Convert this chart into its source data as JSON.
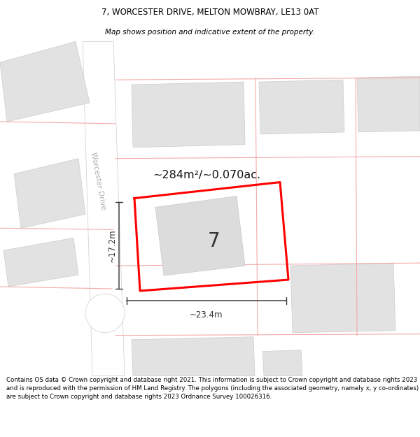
{
  "title": "7, WORCESTER DRIVE, MELTON MOWBRAY, LE13 0AT",
  "subtitle": "Map shows position and indicative extent of the property.",
  "footer": "Contains OS data © Crown copyright and database right 2021. This information is subject to Crown copyright and database rights 2023 and is reproduced with the permission of HM Land Registry. The polygons (including the associated geometry, namely x, y co-ordinates) are subject to Crown copyright and database rights 2023 Ordnance Survey 100026316.",
  "area_text": "~284m²/~0.070ac.",
  "label_7": "7",
  "dim_width": "~23.4m",
  "dim_height": "~17.2m",
  "street_name": "Worcester Drive",
  "title_fontsize": 8.5,
  "subtitle_fontsize": 7.5,
  "footer_fontsize": 6.2,
  "map_bg": "#efefef",
  "road_color": "#ffffff",
  "building_fill": "#e2e2e2",
  "building_edge": "#cccccc",
  "pink_line": "#f5aaaa",
  "red_plot": "#ff0000",
  "dim_color": "#333333",
  "street_color": "#b0b0b0",
  "area_color": "#111111",
  "label_color": "#333333"
}
